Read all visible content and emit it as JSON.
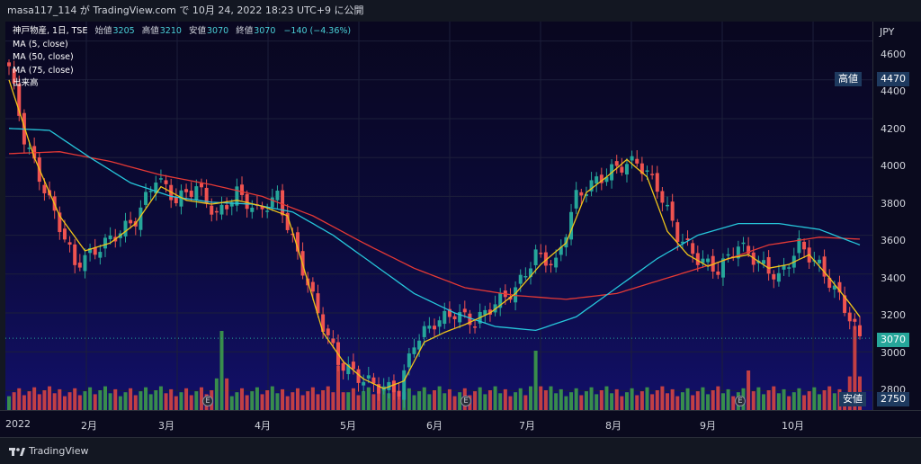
{
  "header": {
    "caption": "masa117_114 が TradingView.com で 10月 24, 2022 18:23 UTC+9 に公開"
  },
  "legend": {
    "symbol": "神戸物産, 1日, TSE",
    "open_label": "始値",
    "open": "3205",
    "high_label": "高値",
    "high": "3210",
    "low_label": "安値",
    "low": "3070",
    "close_label": "終値",
    "close": "3070",
    "change": "−140 (−4.36%)",
    "ma1": "MA (5, close)",
    "ma2": "MA (50, close)",
    "ma3": "MA (75, close)",
    "volume": "出来高"
  },
  "price_axis": {
    "currency": "JPY",
    "ticks": [
      "4600",
      "4400",
      "4200",
      "4000",
      "3800",
      "3600",
      "3400",
      "3200",
      "3000",
      "2800"
    ],
    "high_badge_label": "高値",
    "high_badge_value": "4470",
    "last_value": "3070",
    "low_badge_label": "安値",
    "low_badge_value": "2750"
  },
  "time_axis": {
    "months": [
      "2022",
      "2月",
      "3月",
      "4月",
      "5月",
      "6月",
      "7月",
      "8月",
      "9月",
      "10月"
    ]
  },
  "earnings_marker": "E",
  "footer": {
    "brand": "TradingView"
  },
  "colors": {
    "up": "#26a69a",
    "down": "#ef5350",
    "ma5": "#f0c419",
    "ma50": "#26c6da",
    "ma75": "#e53935"
  },
  "chart_data": {
    "type": "candlestick",
    "y_unit": "JPY",
    "ylim": [
      2700,
      4700
    ],
    "price_path": [
      [
        0,
        4470
      ],
      [
        3,
        4100
      ],
      [
        6,
        3900
      ],
      [
        10,
        3650
      ],
      [
        13,
        3450
      ],
      [
        17,
        3520
      ],
      [
        21,
        3600
      ],
      [
        25,
        3680
      ],
      [
        29,
        3900
      ],
      [
        33,
        3780
      ],
      [
        37,
        3850
      ],
      [
        41,
        3700
      ],
      [
        45,
        3820
      ],
      [
        49,
        3720
      ],
      [
        53,
        3800
      ],
      [
        57,
        3500
      ],
      [
        61,
        3200
      ],
      [
        65,
        2950
      ],
      [
        69,
        2870
      ],
      [
        73,
        2820
      ],
      [
        77,
        2800
      ],
      [
        80,
        3050
      ],
      [
        84,
        3150
      ],
      [
        88,
        3200
      ],
      [
        92,
        3150
      ],
      [
        96,
        3250
      ],
      [
        100,
        3320
      ],
      [
        104,
        3500
      ],
      [
        108,
        3450
      ],
      [
        112,
        3800
      ],
      [
        116,
        3880
      ],
      [
        120,
        3950
      ],
      [
        124,
        3980
      ],
      [
        128,
        3850
      ],
      [
        132,
        3600
      ],
      [
        136,
        3480
      ],
      [
        140,
        3420
      ],
      [
        144,
        3550
      ],
      [
        148,
        3460
      ],
      [
        152,
        3380
      ],
      [
        156,
        3550
      ],
      [
        160,
        3440
      ],
      [
        164,
        3280
      ],
      [
        168,
        3070
      ]
    ],
    "ma5_path": [
      [
        0,
        4400
      ],
      [
        5,
        4000
      ],
      [
        10,
        3700
      ],
      [
        15,
        3520
      ],
      [
        20,
        3560
      ],
      [
        25,
        3660
      ],
      [
        30,
        3850
      ],
      [
        35,
        3780
      ],
      [
        40,
        3760
      ],
      [
        45,
        3780
      ],
      [
        50,
        3750
      ],
      [
        55,
        3700
      ],
      [
        58,
        3450
      ],
      [
        62,
        3100
      ],
      [
        66,
        2950
      ],
      [
        70,
        2860
      ],
      [
        74,
        2810
      ],
      [
        78,
        2850
      ],
      [
        82,
        3050
      ],
      [
        86,
        3100
      ],
      [
        90,
        3140
      ],
      [
        95,
        3200
      ],
      [
        100,
        3300
      ],
      [
        105,
        3450
      ],
      [
        110,
        3560
      ],
      [
        114,
        3820
      ],
      [
        118,
        3900
      ],
      [
        122,
        3990
      ],
      [
        126,
        3900
      ],
      [
        130,
        3620
      ],
      [
        134,
        3500
      ],
      [
        138,
        3440
      ],
      [
        142,
        3480
      ],
      [
        146,
        3500
      ],
      [
        150,
        3430
      ],
      [
        154,
        3450
      ],
      [
        158,
        3500
      ],
      [
        162,
        3380
      ],
      [
        166,
        3250
      ],
      [
        168,
        3180
      ]
    ],
    "ma50_path": [
      [
        0,
        4150
      ],
      [
        8,
        4140
      ],
      [
        16,
        4000
      ],
      [
        24,
        3870
      ],
      [
        32,
        3800
      ],
      [
        40,
        3770
      ],
      [
        48,
        3760
      ],
      [
        56,
        3720
      ],
      [
        64,
        3600
      ],
      [
        72,
        3450
      ],
      [
        80,
        3300
      ],
      [
        88,
        3200
      ],
      [
        96,
        3130
      ],
      [
        104,
        3110
      ],
      [
        112,
        3180
      ],
      [
        120,
        3330
      ],
      [
        128,
        3480
      ],
      [
        136,
        3600
      ],
      [
        144,
        3660
      ],
      [
        152,
        3660
      ],
      [
        160,
        3630
      ],
      [
        168,
        3550
      ]
    ],
    "ma75_path": [
      [
        0,
        4020
      ],
      [
        10,
        4030
      ],
      [
        20,
        3980
      ],
      [
        30,
        3910
      ],
      [
        40,
        3860
      ],
      [
        50,
        3800
      ],
      [
        60,
        3700
      ],
      [
        70,
        3560
      ],
      [
        80,
        3430
      ],
      [
        90,
        3330
      ],
      [
        100,
        3290
      ],
      [
        110,
        3270
      ],
      [
        120,
        3300
      ],
      [
        130,
        3380
      ],
      [
        140,
        3460
      ],
      [
        150,
        3550
      ],
      [
        160,
        3590
      ],
      [
        168,
        3580
      ]
    ],
    "volume_scale_max": 100,
    "volume_spikes": [
      [
        42,
        80
      ],
      [
        65,
        45
      ],
      [
        104,
        60
      ],
      [
        146,
        40
      ],
      [
        167,
        85
      ]
    ]
  }
}
